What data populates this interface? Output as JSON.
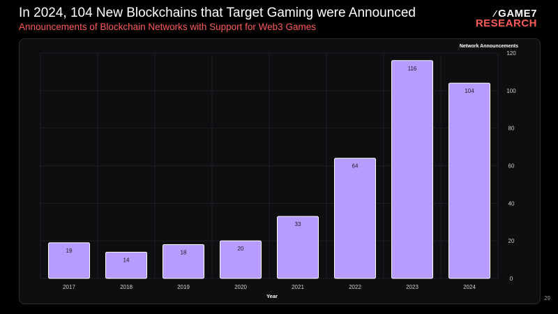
{
  "header": {
    "title": "In 2024, 104 New Blockchains that Target Gaming were Announced",
    "subtitle": "Announcements of Blockchain Networks with Support for Web3 Games"
  },
  "logo": {
    "line1": "GAME7",
    "line2": "RESEARCH",
    "mark": "⁄"
  },
  "page_number": "29",
  "colors": {
    "bar": "#b69cff",
    "bar_border": "#ffffff",
    "accent": "#ff5a5a",
    "grid": "#1c1e22"
  },
  "chart_data": {
    "type": "bar",
    "title": "",
    "xlabel": "Year",
    "ylabel": "Network Announcements",
    "categories": [
      "2017",
      "2018",
      "2019",
      "2020",
      "2021",
      "2022",
      "2023",
      "2024"
    ],
    "values": [
      19,
      14,
      18,
      20,
      33,
      64,
      116,
      104
    ],
    "ylim": [
      0,
      120
    ],
    "yticks": [
      0,
      20,
      40,
      60,
      80,
      100,
      120
    ],
    "grid": true,
    "legend": "none",
    "y_axis_side": "right"
  }
}
